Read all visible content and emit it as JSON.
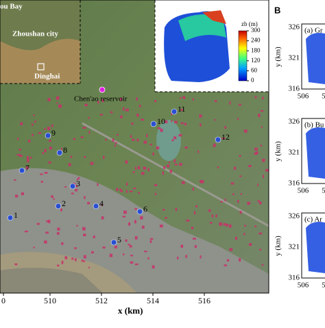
{
  "main_map": {
    "xlabel": "x (km)",
    "xticks": [
      "0",
      "510",
      "512",
      "514",
      "516"
    ],
    "sites": [
      "1",
      "2",
      "3",
      "4",
      "5",
      "6",
      "7",
      "8",
      "9",
      "10",
      "11",
      "12"
    ],
    "reservoir": "Chen'ao reservoir",
    "inset_labels": [
      "ou Bay",
      "Zhoushan city",
      "Dinghai"
    ],
    "colorbar": {
      "label": "zb (m)",
      "ticks": [
        300,
        240,
        180,
        120,
        60,
        0
      ]
    }
  },
  "panel_b": {
    "label": "B",
    "subplots": [
      {
        "title": "(a) Gr",
        "ylabel": "y (km)",
        "yticks": [
          "326",
          "321",
          "316"
        ],
        "xticks": [
          "506",
          "5"
        ]
      },
      {
        "title": "(b) Bu",
        "ylabel": "y (km)",
        "yticks": [
          "326",
          "321",
          "316"
        ],
        "xticks": [
          "506",
          "5"
        ]
      },
      {
        "title": "(c) Ar",
        "ylabel": "y (km)",
        "yticks": [
          "326",
          "321",
          "316"
        ],
        "xticks": [
          "506",
          "5"
        ]
      }
    ]
  }
}
